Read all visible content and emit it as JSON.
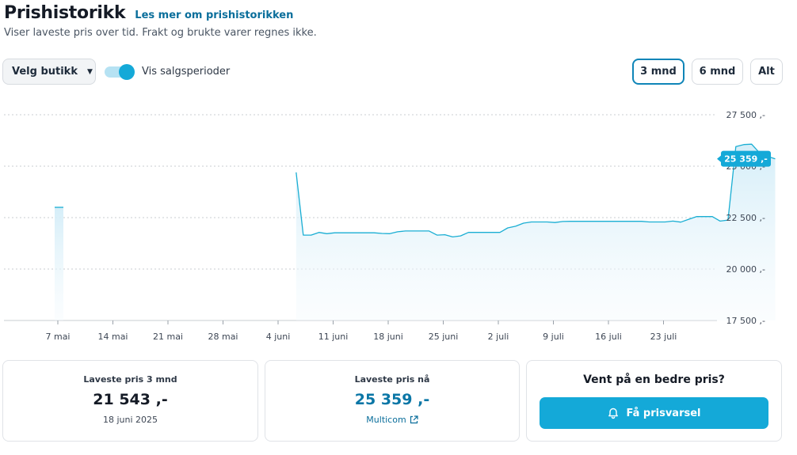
{
  "header": {
    "title": "Prishistorikk",
    "link": "Les mer om prishistorikken",
    "subtitle": "Viser laveste pris over tid. Frakt og brukte varer regnes ikke."
  },
  "controls": {
    "store_select": "Velg butikk",
    "toggle_label": "Vis salgsperioder",
    "toggle_on": true,
    "ranges": [
      "3 mnd",
      "6 mnd",
      "Alt"
    ],
    "active_range": "3 mnd"
  },
  "colors": {
    "accent": "#14a9d8",
    "line": "#1aaed3",
    "link": "#0a6e9b"
  },
  "chart_data": {
    "type": "area",
    "y_tick_labels": [
      "27 500 ,-",
      "25 000 ,-",
      "22 500 ,-",
      "20 000 ,-",
      "17 500 ,-"
    ],
    "y_ticks": [
      27500,
      25000,
      22500,
      20000,
      17500
    ],
    "x_tick_labels": [
      "7 mai",
      "14 mai",
      "21 mai",
      "28 mai",
      "4 juni",
      "11 juni",
      "18 juni",
      "25 juni",
      "2 juli",
      "9 juli",
      "16 juli",
      "23 juli"
    ],
    "ylim": [
      17500,
      27500
    ],
    "grid": true,
    "current_label": "25 359 ,-",
    "current_value": 25359,
    "series": [
      {
        "segments": [
          {
            "x": [
              -0.4,
              0.7
            ],
            "y": [
              23000,
              23000
            ]
          },
          {
            "x": [
              30.3,
              31.2,
              32.2,
              33.2,
              34.2,
              35.2,
              36.2,
              37.2,
              38.2,
              39.2,
              40.2,
              41.2,
              42.2,
              43.2,
              44.2,
              45.2,
              46.2,
              47.2,
              48.2,
              49.2,
              50.2,
              51.2,
              52.2,
              53.2,
              54.2,
              55.2,
              56.2,
              57.2,
              58.2,
              59.2,
              60.2,
              61.2,
              62.2,
              63.2,
              64.2,
              65.2,
              66.2,
              67.2,
              68.2,
              69.2,
              70.2,
              71.2,
              72.2,
              73.2,
              74.2,
              75.2,
              76.2,
              77.2,
              78.2,
              79.2,
              80.2,
              81.2,
              82.2,
              83.2,
              84.2,
              85.2,
              86.2,
              87.2,
              88.2,
              89.2,
              90.2,
              91.2
            ],
            "y": [
              24700,
              21650,
              21650,
              21780,
              21720,
              21760,
              21760,
              21760,
              21760,
              21760,
              21760,
              21730,
              21720,
              21810,
              21850,
              21850,
              21850,
              21850,
              21650,
              21670,
              21560,
              21610,
              21780,
              21780,
              21780,
              21780,
              21780,
              22000,
              22080,
              22230,
              22290,
              22290,
              22290,
              22260,
              22310,
              22320,
              22320,
              22320,
              22320,
              22320,
              22320,
              22320,
              22320,
              22320,
              22320,
              22290,
              22290,
              22290,
              22330,
              22280,
              22420,
              22550,
              22550,
              22550,
              22330,
              22380,
              25950,
              26050,
              26070,
              25650,
              25480,
              25359
            ]
          }
        ]
      }
    ]
  },
  "cards": {
    "lowest3": {
      "label": "Laveste pris 3 mnd",
      "value": "21 543 ,-",
      "date": "18 juni 2025"
    },
    "lowestNow": {
      "label": "Laveste pris nå",
      "value": "25 359 ,-",
      "store": "Multicom"
    },
    "alert": {
      "title": "Vent på en bedre pris?",
      "button": "Få prisvarsel"
    }
  }
}
